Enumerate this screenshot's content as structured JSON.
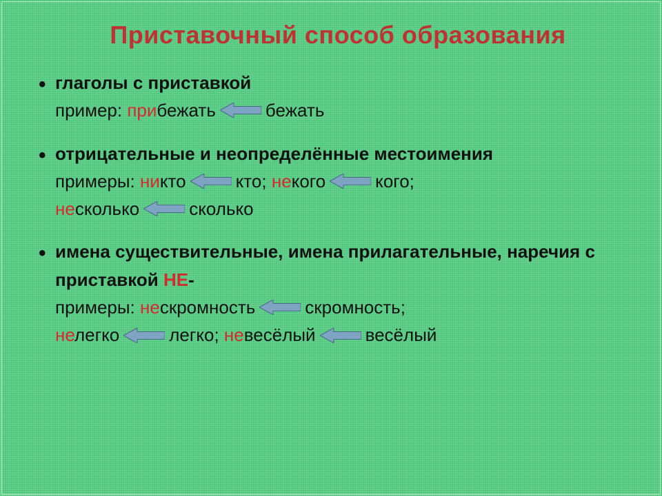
{
  "colors": {
    "background": "#4ec77c",
    "title": "#bf3232",
    "body": "#111111",
    "highlight": "#d42c2c",
    "arrow_fill": "#7fa3c2",
    "arrow_stroke": "#4a6a85"
  },
  "title": "Приставочный способ образования",
  "title_fontsize": 36,
  "body_fontsize": 26,
  "bullets": [
    {
      "head": "глаголы с приставкой",
      "lines": [
        {
          "prefix": "пример: ",
          "pairs": [
            {
              "left_hi": "при",
              "left_rest": "бежать",
              "right": "бежать"
            }
          ]
        }
      ]
    },
    {
      "head": "отрицательные и неопределённые местоимения",
      "lines": [
        {
          "prefix": "примеры: ",
          "pairs": [
            {
              "left_hi": "ни",
              "left_rest": "кто",
              "right": "кто",
              "sep_after": "; "
            },
            {
              "left_hi": "не",
              "left_rest": "кого",
              "right": "кого",
              "sep_after": ";"
            }
          ]
        },
        {
          "prefix": "  ",
          "pairs": [
            {
              "left_hi": "не",
              "left_rest": "сколько",
              "right": "сколько"
            }
          ]
        }
      ]
    },
    {
      "head": "имена существительные, имена прилагательные, наречия с приставкой ",
      "head_tail_hi": "НЕ",
      "head_tail_plain": "-",
      "lines": [
        {
          "prefix": "примеры: ",
          "pairs": [
            {
              "left_hi": "не",
              "left_rest": "скромность",
              "right": "скромность",
              "sep_after": ";"
            }
          ]
        },
        {
          "prefix": "",
          "pairs": [
            {
              "left_hi": "не",
              "left_rest": "легко",
              "right": "легко",
              "sep_after": "; "
            },
            {
              "left_hi": "не",
              "left_rest": "весёлый",
              "right": "весёлый"
            }
          ]
        }
      ]
    }
  ],
  "arrow": {
    "width": 60,
    "height": 22
  }
}
